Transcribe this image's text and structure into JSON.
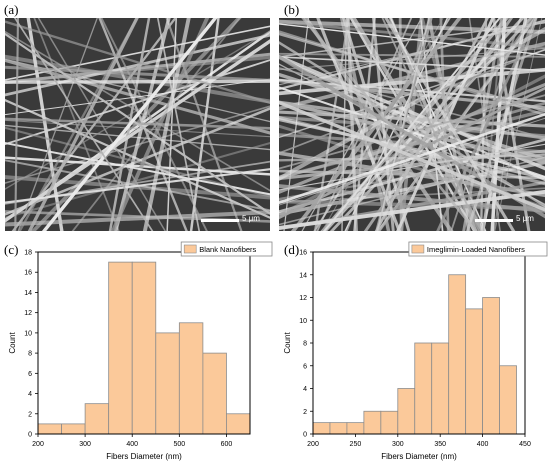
{
  "panels": {
    "a": {
      "label": "(a)",
      "scale_label": "5 μm"
    },
    "b": {
      "label": "(b)",
      "scale_label": "5 μm"
    },
    "c": {
      "label": "(c)"
    },
    "d": {
      "label": "(d)"
    }
  },
  "colors": {
    "bar_fill": "#fbc99a",
    "bar_stroke": "#8c8c8c",
    "sem_bg": "#3a3a3a",
    "fiber": "#d8d8d8"
  },
  "chart_data": [
    {
      "id": "c",
      "type": "bar",
      "title": "",
      "xlabel": "Fibers Diameter (nm)",
      "ylabel": "Count",
      "legend": [
        "Blank Nanofibers"
      ],
      "legend_position": "top-right",
      "xlim": [
        200,
        650
      ],
      "ylim": [
        0,
        18
      ],
      "xticks": [
        200,
        300,
        400,
        500,
        600
      ],
      "yticks": [
        0,
        2,
        4,
        6,
        8,
        10,
        12,
        14,
        16,
        18
      ],
      "bin_edges": [
        200,
        250,
        300,
        350,
        400,
        450,
        500,
        550,
        600,
        650
      ],
      "series": [
        {
          "name": "Blank Nanofibers",
          "values": [
            1,
            1,
            3,
            17,
            17,
            10,
            11,
            8,
            2
          ]
        }
      ]
    },
    {
      "id": "d",
      "type": "bar",
      "title": "",
      "xlabel": "Fibers Diameter (nm)",
      "ylabel": "Count",
      "legend": [
        "Imeglimin-Loaded Nanofibers"
      ],
      "legend_position": "top-right",
      "xlim": [
        200,
        450
      ],
      "ylim": [
        0,
        16
      ],
      "xticks": [
        200,
        250,
        300,
        350,
        400,
        450
      ],
      "yticks": [
        0,
        2,
        4,
        6,
        8,
        10,
        12,
        14,
        16
      ],
      "bin_edges": [
        200,
        220,
        240,
        260,
        280,
        300,
        320,
        340,
        360,
        380,
        400,
        420,
        440
      ],
      "series": [
        {
          "name": "Imeglimin-Loaded Nanofibers",
          "values": [
            1,
            1,
            1,
            2,
            2,
            4,
            8,
            8,
            14,
            11,
            12,
            6
          ]
        }
      ]
    }
  ]
}
